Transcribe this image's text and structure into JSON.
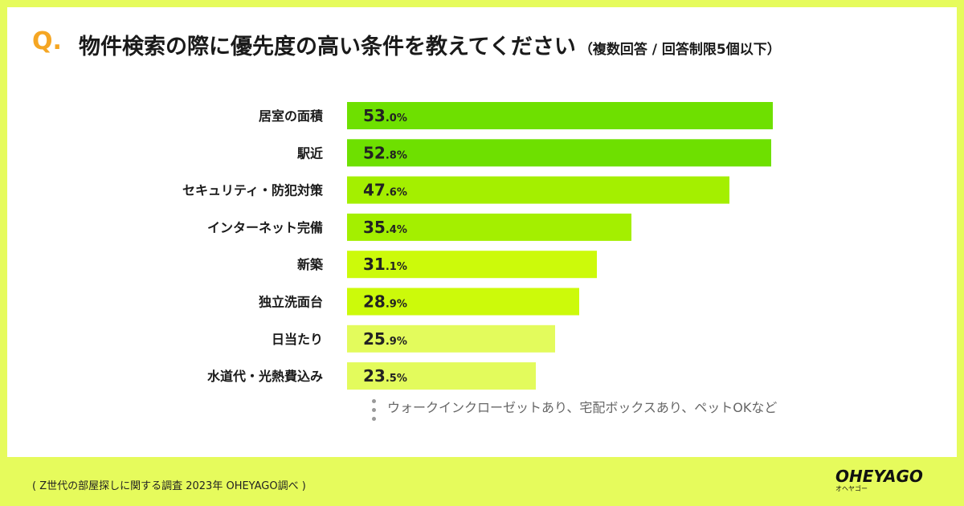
{
  "header": {
    "q_mark": "Q.",
    "title": "物件検索の際に優先度の高い条件を教えてください",
    "subtitle": "（複数回答 / 回答制限5個以下）"
  },
  "chart_data": {
    "type": "bar",
    "orientation": "horizontal",
    "title": "物件検索の際に優先度の高い条件を教えてください",
    "categories": [
      "居室の面積",
      "駅近",
      "セキュリティ・防犯対策",
      "インターネット完備",
      "新築",
      "独立洗面台",
      "日当たり",
      "水道代・光熱費込み"
    ],
    "values": [
      53.0,
      52.8,
      47.6,
      35.4,
      31.1,
      28.9,
      25.9,
      23.5
    ],
    "value_labels": [
      {
        "int": "53",
        "dec": ".0%"
      },
      {
        "int": "52",
        "dec": ".8%"
      },
      {
        "int": "47",
        "dec": ".6%"
      },
      {
        "int": "35",
        "dec": ".4%"
      },
      {
        "int": "31",
        "dec": ".1%"
      },
      {
        "int": "28",
        "dec": ".9%"
      },
      {
        "int": "25",
        "dec": ".9%"
      },
      {
        "int": "23",
        "dec": ".5%"
      }
    ],
    "colors": [
      "#6ee000",
      "#6ee000",
      "#a4ef00",
      "#a4ef00",
      "#ccfa0a",
      "#ccfa0a",
      "#e3fb5c",
      "#e3fb5c"
    ],
    "unit": "%",
    "xlim": [
      0,
      100
    ],
    "grid": false,
    "legend": "none"
  },
  "footer": {
    "more_text": "ウォークインクローゼットあり、宅配ボックスあり、ペットOKなど",
    "source": "( Z世代の部屋探しに関する調査 2023年 OHEYAGO調べ )",
    "logo_main": "OHEYAGO",
    "logo_sub": "オヘヤゴー"
  }
}
